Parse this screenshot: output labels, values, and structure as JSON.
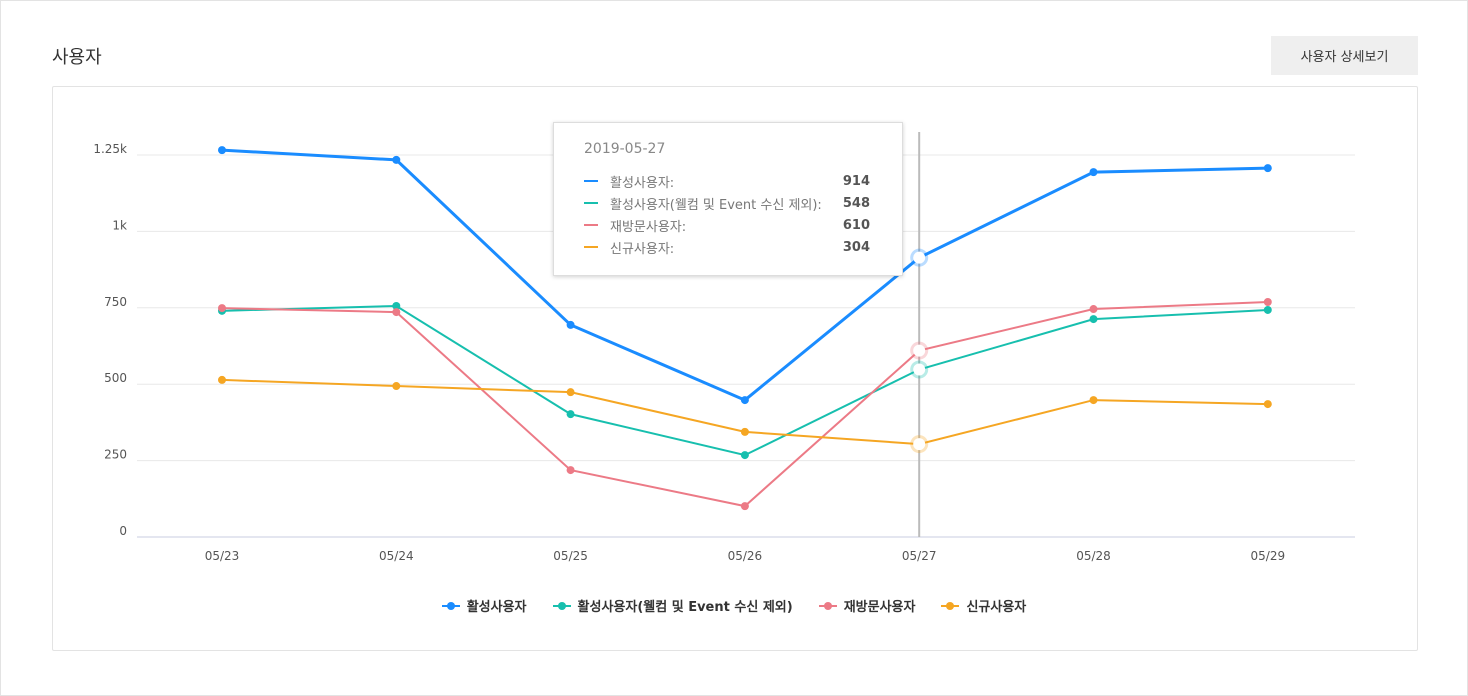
{
  "header": {
    "title": "사용자",
    "detail_button": "사용자 상세보기"
  },
  "chart_data": {
    "type": "line",
    "categories": [
      "05/23",
      "05/24",
      "05/25",
      "05/26",
      "05/27",
      "05/28",
      "05/29"
    ],
    "y_ticks": [
      {
        "v": 0,
        "label": "0"
      },
      {
        "v": 250,
        "label": "250"
      },
      {
        "v": 500,
        "label": "500"
      },
      {
        "v": 750,
        "label": "750"
      },
      {
        "v": 1000,
        "label": "1k"
      },
      {
        "v": 1250,
        "label": "1.25k"
      }
    ],
    "ylim": [
      0,
      1250
    ],
    "grid": true,
    "legend_placement": "bottom",
    "series": [
      {
        "name": "활성사용자",
        "color": "#1a8cff",
        "values": [
          1266,
          1234,
          694,
          448,
          914,
          1194,
          1207
        ]
      },
      {
        "name": "활성사용자(웰컴 및 Event 수신 제외)",
        "color": "#17bfae",
        "values": [
          740,
          756,
          402,
          268,
          548,
          713,
          743
        ]
      },
      {
        "name": "재방문사용자",
        "color": "#ec7a86",
        "values": [
          749,
          736,
          219,
          101,
          610,
          746,
          769
        ]
      },
      {
        "name": "신규사용자",
        "color": "#f5a623",
        "values": [
          514,
          494,
          474,
          344,
          304,
          448,
          435
        ]
      }
    ],
    "tooltip": {
      "date": "2019-05-27",
      "category_index": 4,
      "rows": [
        {
          "label": "활성사용자:",
          "value": "914"
        },
        {
          "label": "활성사용자(웰컴 및 Event 수신 제외):",
          "value": "548"
        },
        {
          "label": "재방문사용자:",
          "value": "610"
        },
        {
          "label": "신규사용자:",
          "value": "304"
        }
      ]
    }
  }
}
